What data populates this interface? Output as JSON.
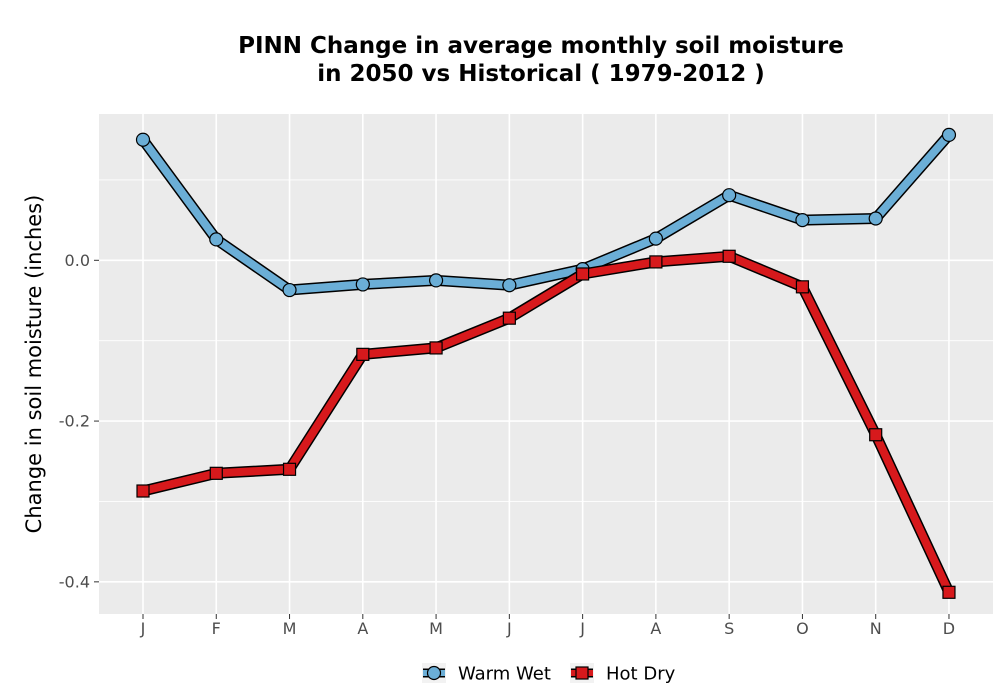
{
  "chart_data": {
    "type": "line",
    "title_lines": [
      "PINN  Change in average monthly soil moisture",
      "in 2050 vs Historical ( 1979-2012 )"
    ],
    "xlabel": "",
    "ylabel": "Change in soil moisture (inches)",
    "categories": [
      "J",
      "F",
      "M",
      "A",
      "M",
      "J",
      "J",
      "A",
      "S",
      "O",
      "N",
      "D"
    ],
    "ylim": [
      -0.44,
      0.182
    ],
    "yticks": [
      0.0,
      -0.2,
      -0.4
    ],
    "ytick_labels": [
      "0.0",
      "-0.2",
      "-0.4"
    ],
    "grid": true,
    "legend_position": "bottom",
    "series": [
      {
        "name": "Warm Wet",
        "marker": "circle",
        "color": "#6baed6",
        "values": [
          0.15,
          0.026,
          -0.037,
          -0.03,
          -0.025,
          -0.031,
          -0.011,
          0.027,
          0.081,
          0.05,
          0.052,
          0.156
        ]
      },
      {
        "name": "Hot Dry",
        "marker": "square",
        "color": "#d7191c",
        "values": [
          -0.287,
          -0.265,
          -0.26,
          -0.117,
          -0.109,
          -0.072,
          -0.017,
          -0.002,
          0.005,
          -0.033,
          -0.217,
          -0.413
        ]
      }
    ],
    "colors": {
      "panel_background": "#ebebeb",
      "gridline": "#ffffff",
      "outline": "#000000"
    }
  }
}
